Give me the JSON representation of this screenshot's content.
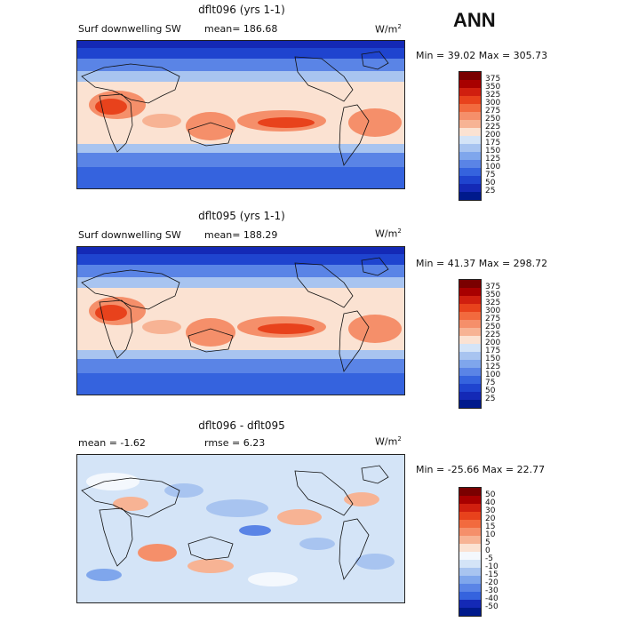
{
  "header": {
    "season": "ANN"
  },
  "panels": [
    {
      "title": "dflt096 (yrs 1-1)",
      "label_left": "Surf downwelling SW",
      "label_mid": "mean= 186.68",
      "units_base": "W/m",
      "units_exp": "2",
      "minmax": "Min =   39.02 Max =  305.73",
      "colorbar": {
        "levels": [
          "375",
          "350",
          "325",
          "300",
          "275",
          "250",
          "225",
          "200",
          "175",
          "150",
          "125",
          "100",
          "75",
          "50",
          "25"
        ],
        "colors": [
          "#7a0000",
          "#a80000",
          "#d01f0f",
          "#e8421c",
          "#f26a3e",
          "#f58f6a",
          "#f7b394",
          "#fbe2d2",
          "#d4e4f7",
          "#a8c4f0",
          "#7fa6ec",
          "#5a84e6",
          "#3563de",
          "#1f44cf",
          "#1429b6",
          "#001a8c"
        ]
      }
    },
    {
      "title": "dflt095 (yrs 1-1)",
      "label_left": "Surf downwelling SW",
      "label_mid": "mean= 188.29",
      "units_base": "W/m",
      "units_exp": "2",
      "minmax": "Min =   41.37 Max =  298.72",
      "colorbar": {
        "levels": [
          "375",
          "350",
          "325",
          "300",
          "275",
          "250",
          "225",
          "200",
          "175",
          "150",
          "125",
          "100",
          "75",
          "50",
          "25"
        ],
        "colors": [
          "#7a0000",
          "#a80000",
          "#d01f0f",
          "#e8421c",
          "#f26a3e",
          "#f58f6a",
          "#f7b394",
          "#fbe2d2",
          "#d4e4f7",
          "#a8c4f0",
          "#7fa6ec",
          "#5a84e6",
          "#3563de",
          "#1f44cf",
          "#1429b6",
          "#001a8c"
        ]
      }
    },
    {
      "title": "dflt096 - dflt095",
      "label_left": "mean =   -1.62",
      "label_mid": "rmse =    6.23",
      "units_base": "W/m",
      "units_exp": "2",
      "minmax": "Min = -25.66 Max =   22.77",
      "colorbar": {
        "levels": [
          "50",
          "40",
          "30",
          "20",
          "15",
          "10",
          "5",
          "0",
          "-5",
          "-10",
          "-15",
          "-20",
          "-30",
          "-40",
          "-50"
        ],
        "colors": [
          "#7a0000",
          "#a80000",
          "#d01f0f",
          "#e8421c",
          "#f26a3e",
          "#f58f6a",
          "#f7b394",
          "#fbe2d2",
          "#f4f8fd",
          "#d4e4f7",
          "#a8c4f0",
          "#7fa6ec",
          "#5a84e6",
          "#3563de",
          "#1429b6",
          "#001a8c"
        ]
      }
    }
  ]
}
